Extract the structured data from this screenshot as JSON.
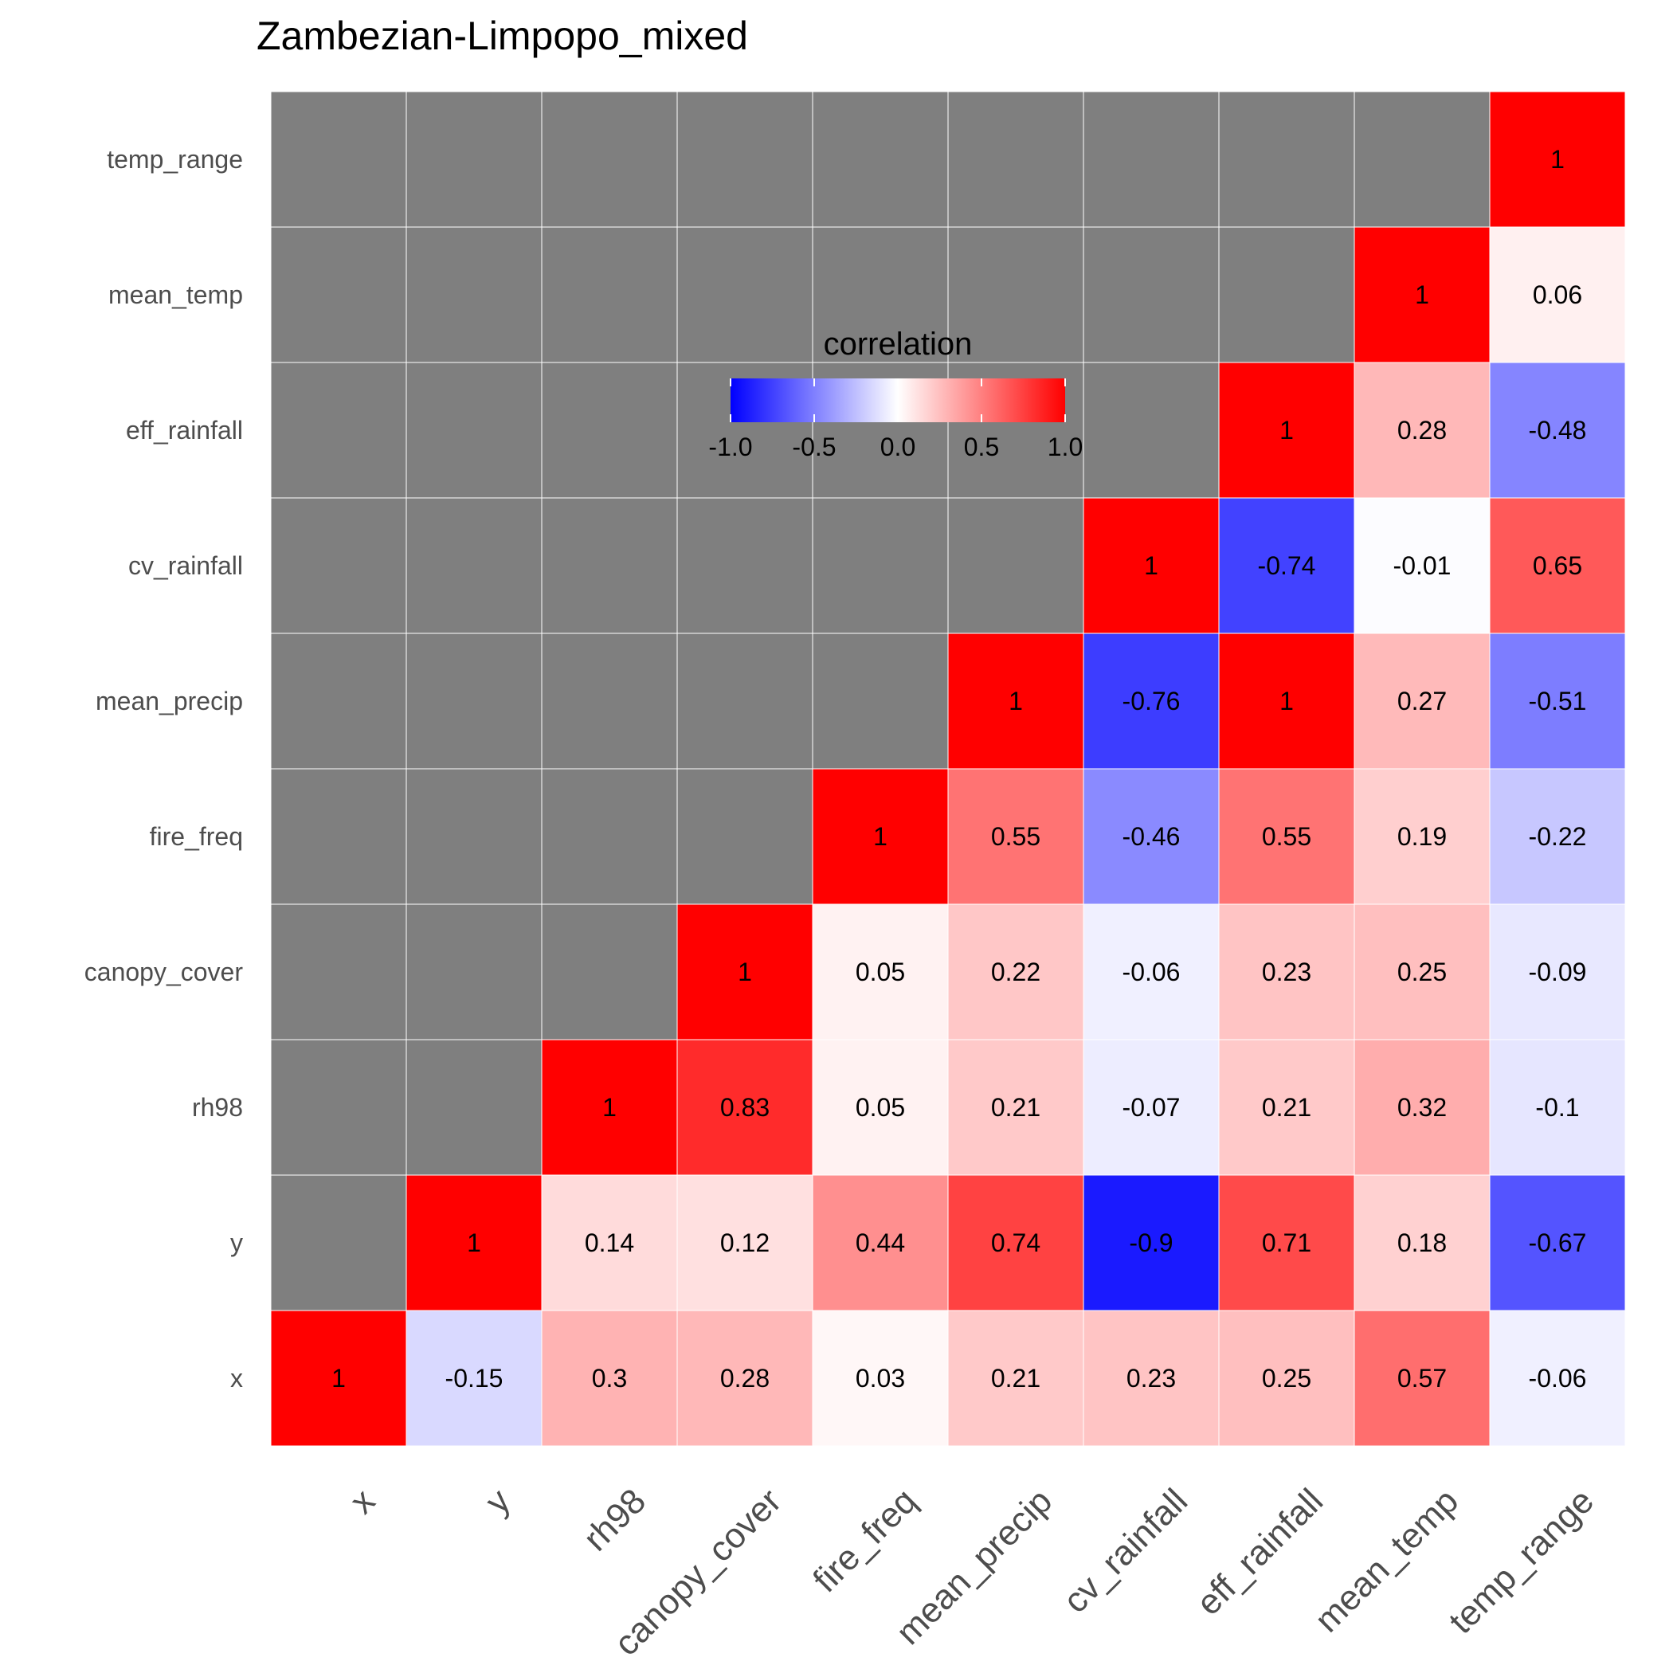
{
  "chart_data": {
    "type": "heatmap",
    "title": "Zambezian-Limpopo_mixed",
    "variables": [
      "x",
      "y",
      "rh98",
      "canopy_cover",
      "fire_freq",
      "mean_precip",
      "cv_rainfall",
      "eff_rainfall",
      "mean_temp",
      "temp_range"
    ],
    "matrix": [
      [
        1,
        -0.15,
        0.3,
        0.28,
        0.03,
        0.21,
        0.23,
        0.25,
        0.57,
        -0.06
      ],
      [
        null,
        1,
        0.14,
        0.12,
        0.44,
        0.74,
        -0.9,
        0.71,
        0.18,
        -0.67
      ],
      [
        null,
        null,
        1,
        0.83,
        0.05,
        0.21,
        -0.07,
        0.21,
        0.32,
        -0.1
      ],
      [
        null,
        null,
        null,
        1,
        0.05,
        0.22,
        -0.06,
        0.23,
        0.25,
        -0.09
      ],
      [
        null,
        null,
        null,
        null,
        1,
        0.55,
        -0.46,
        0.55,
        0.19,
        -0.22
      ],
      [
        null,
        null,
        null,
        null,
        null,
        1,
        -0.76,
        1,
        0.27,
        -0.51
      ],
      [
        null,
        null,
        null,
        null,
        null,
        null,
        1,
        -0.74,
        -0.01,
        0.65
      ],
      [
        null,
        null,
        null,
        null,
        null,
        null,
        null,
        1,
        0.28,
        -0.48
      ],
      [
        null,
        null,
        null,
        null,
        null,
        null,
        null,
        null,
        1,
        0.06
      ],
      [
        null,
        null,
        null,
        null,
        null,
        null,
        null,
        null,
        null,
        1
      ]
    ],
    "legend": {
      "title": "correlation",
      "ticks": [
        "-1.0",
        "-0.5",
        "0.0",
        "0.5",
        "1.0"
      ],
      "range": [
        -1,
        1
      ],
      "placement": "top-center"
    },
    "colors": {
      "low": "#0000ff",
      "mid": "#ffffff",
      "high": "#ff0000",
      "missing": "#7f7f7f",
      "grid": "#ffffff"
    }
  }
}
